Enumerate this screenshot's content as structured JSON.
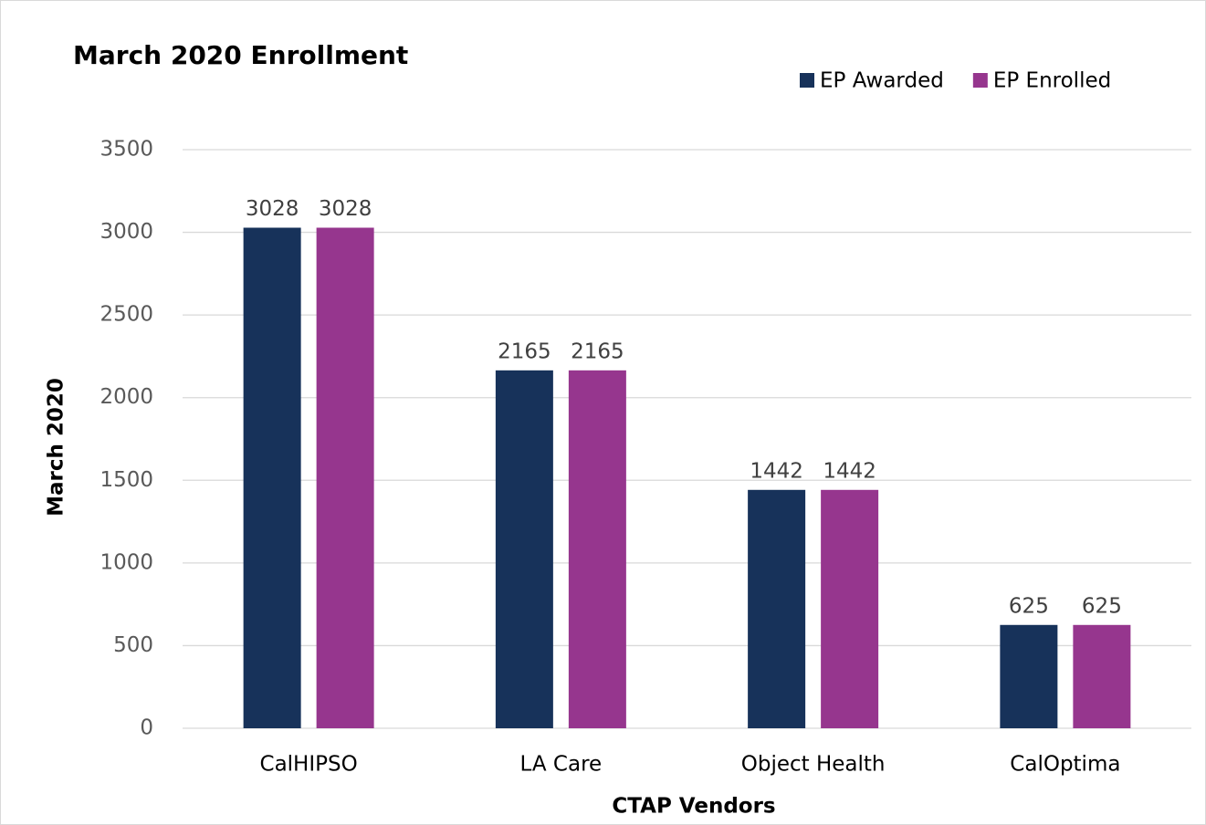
{
  "chart_data": {
    "type": "bar",
    "title": "March 2020 Enrollment",
    "x_label": "CTAP Vendors",
    "y_label": "March 2020",
    "categories": [
      "CalHIPSO",
      "LA Care",
      "Object Health",
      "CalOptima"
    ],
    "series": [
      {
        "name": "EP Awarded",
        "color": "#17325a",
        "values": [
          3028,
          2165,
          1442,
          625
        ]
      },
      {
        "name": "EP Enrolled",
        "color": "#96368e",
        "values": [
          3028,
          2165,
          1442,
          625
        ]
      }
    ],
    "ylim": [
      0,
      3500
    ],
    "yticks": [
      0,
      500,
      1000,
      1500,
      2000,
      2500,
      3000,
      3500
    ],
    "grid": true,
    "legend": "top-right"
  }
}
